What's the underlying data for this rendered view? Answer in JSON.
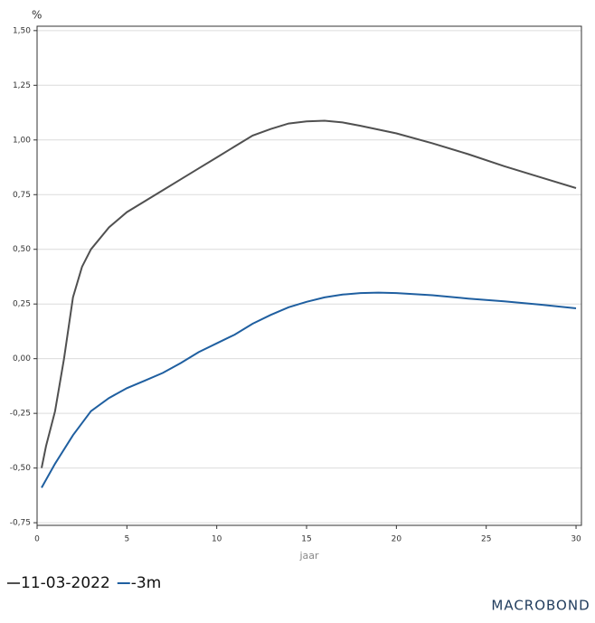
{
  "chart_data": {
    "type": "line",
    "y_unit": "%",
    "x_label": "jaar",
    "grid": true,
    "legend_position": "bottom",
    "xlim": [
      0,
      30.3
    ],
    "xticks": [
      0,
      5,
      10,
      15,
      20,
      25,
      30
    ],
    "ylim": [
      -0.762,
      1.52
    ],
    "yticks": [
      {
        "value": -0.75,
        "label": "-0,75"
      },
      {
        "value": -0.5,
        "label": "-0,50"
      },
      {
        "value": -0.25,
        "label": "-0,25"
      },
      {
        "value": 0,
        "label": "0,00"
      },
      {
        "value": 0.25,
        "label": "0,25"
      },
      {
        "value": 0.5,
        "label": "0,50"
      },
      {
        "value": 0.75,
        "label": "0,75"
      },
      {
        "value": 1.0,
        "label": "1,00"
      },
      {
        "value": 1.25,
        "label": "1,25"
      },
      {
        "value": 1.5,
        "label": "1,50"
      }
    ],
    "series": [
      {
        "name": "11-03-2022",
        "color": "#505050",
        "x": [
          0.25,
          0.5,
          1,
          1.5,
          2,
          2.5,
          3,
          4,
          5,
          6,
          7,
          8,
          9,
          10,
          11,
          12,
          13,
          14,
          15,
          16,
          17,
          18,
          20,
          22,
          24,
          26,
          28,
          30
        ],
        "values": [
          -0.5,
          -0.4,
          -0.24,
          0.0,
          0.28,
          0.42,
          0.5,
          0.6,
          0.67,
          0.72,
          0.77,
          0.82,
          0.87,
          0.92,
          0.97,
          1.02,
          1.05,
          1.075,
          1.085,
          1.088,
          1.08,
          1.065,
          1.03,
          0.985,
          0.935,
          0.88,
          0.83,
          0.78
        ]
      },
      {
        "name": "-3m",
        "color": "#1f5fa0",
        "x": [
          0.25,
          1,
          2,
          3,
          4,
          5,
          6,
          7,
          8,
          9,
          10,
          11,
          12,
          13,
          14,
          15,
          16,
          17,
          18,
          19,
          20,
          22,
          24,
          26,
          28,
          30
        ],
        "values": [
          -0.59,
          -0.48,
          -0.35,
          -0.24,
          -0.18,
          -0.135,
          -0.1,
          -0.065,
          -0.02,
          0.03,
          0.07,
          0.11,
          0.16,
          0.2,
          0.235,
          0.26,
          0.28,
          0.293,
          0.3,
          0.302,
          0.3,
          0.29,
          0.275,
          0.262,
          0.247,
          0.23
        ]
      }
    ]
  },
  "branding": "MACROBOND"
}
